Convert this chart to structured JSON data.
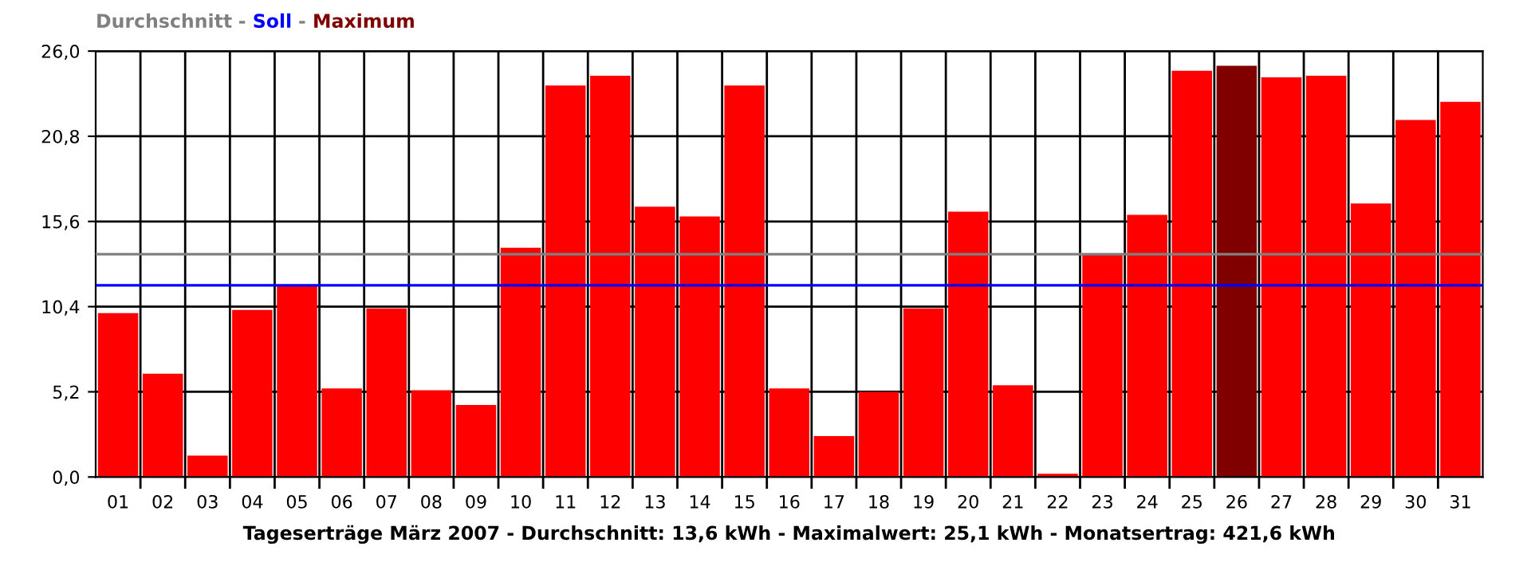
{
  "chart_data": {
    "type": "bar",
    "title": "Durchschnitt - Soll - Maximum",
    "xlabel": "Tageserträge März 2007 - Durchschnitt: 13,6 kWh - Maximalwert: 25,1 kWh - Monatsertrag: 421,6 kWh",
    "categories": [
      "01",
      "02",
      "03",
      "04",
      "05",
      "06",
      "07",
      "08",
      "09",
      "10",
      "11",
      "12",
      "13",
      "14",
      "15",
      "16",
      "17",
      "18",
      "19",
      "20",
      "21",
      "22",
      "23",
      "24",
      "25",
      "26",
      "27",
      "28",
      "29",
      "30",
      "31"
    ],
    "values": [
      10.0,
      6.3,
      1.3,
      10.2,
      11.7,
      5.4,
      10.3,
      5.3,
      4.4,
      14.0,
      23.9,
      24.5,
      16.5,
      15.9,
      23.9,
      5.4,
      2.5,
      5.2,
      10.3,
      16.2,
      5.6,
      0.2,
      13.6,
      16.0,
      24.8,
      25.1,
      24.4,
      24.5,
      16.7,
      21.8,
      22.9
    ],
    "colors": [
      "#ff0000",
      "#ff0000",
      "#ff0000",
      "#ff0000",
      "#ff0000",
      "#ff0000",
      "#ff0000",
      "#ff0000",
      "#ff0000",
      "#ff0000",
      "#ff0000",
      "#ff0000",
      "#ff0000",
      "#ff0000",
      "#ff0000",
      "#ff0000",
      "#ff0000",
      "#ff0000",
      "#ff0000",
      "#ff0000",
      "#ff0000",
      "#ff0000",
      "#ff0000",
      "#ff0000",
      "#ff0000",
      "#800000",
      "#ff0000",
      "#ff0000",
      "#ff0000",
      "#ff0000",
      "#ff0000"
    ],
    "ylim": [
      0,
      26
    ],
    "yticks": [
      {
        "value": 0,
        "label": "0,0"
      },
      {
        "value": 5.2,
        "label": "5,2"
      },
      {
        "value": 10.4,
        "label": "10,4"
      },
      {
        "value": 15.6,
        "label": "15,6"
      },
      {
        "value": 20.8,
        "label": "20,8"
      },
      {
        "value": 26,
        "label": "26,0"
      }
    ],
    "grid": true,
    "ref_lines": [
      {
        "axis": "y",
        "value": 13.6,
        "color": "#808080"
      },
      {
        "axis": "y",
        "value": 11.7,
        "color": "#0000ff"
      }
    ]
  }
}
